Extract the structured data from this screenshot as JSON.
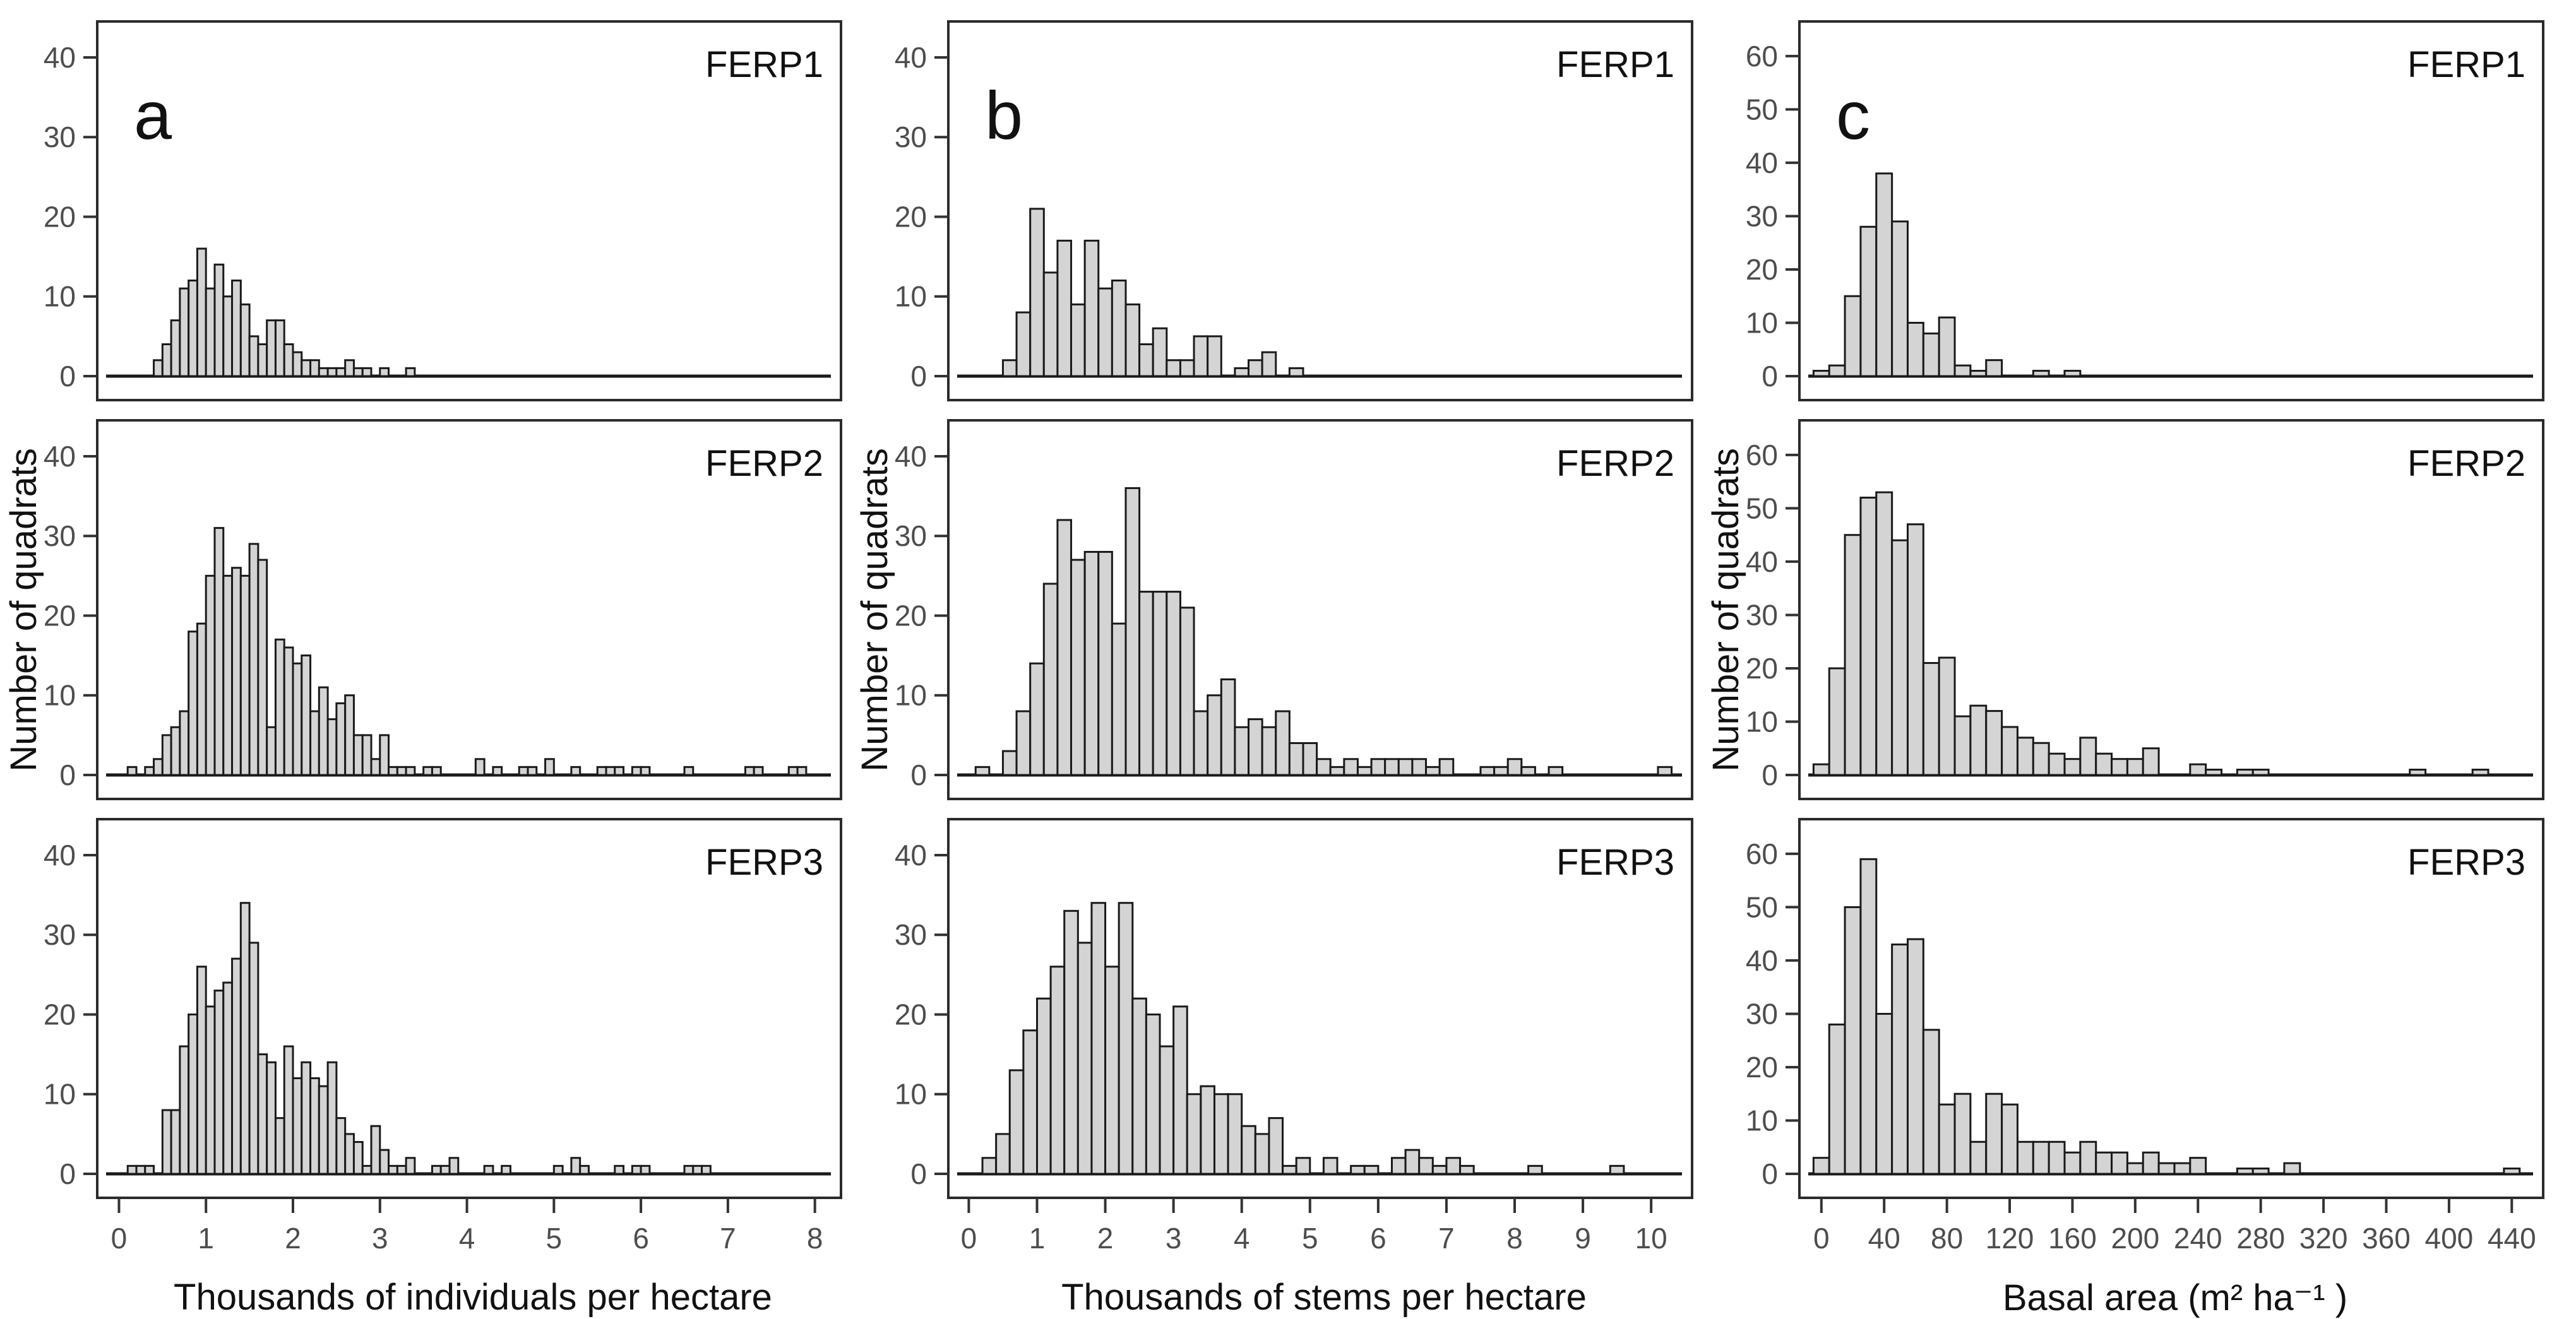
{
  "figure": {
    "background": "#ffffff",
    "bar_fill": "#d4d4d4",
    "bar_stroke": "#1a1a1a",
    "axis_color": "#2b2b2b",
    "tick_color": "#333333",
    "tick_label_color": "#4d4d4d",
    "text_color": "#111111",
    "ylabel": "Number of quadrats"
  },
  "chart_data": [
    {
      "type": "bar",
      "panel": "a-FERP1",
      "column": "a",
      "row": 0,
      "letter": "a",
      "site_label": "FERP1",
      "xlabel": "",
      "ylabel": "Number of quadrats",
      "grid": false,
      "legend": false,
      "xlim": [
        -0.25,
        8.3
      ],
      "xticks": [
        0,
        1,
        2,
        3,
        4,
        5,
        6,
        7,
        8
      ],
      "ylim": [
        0,
        41.5
      ],
      "yticks": [
        0,
        10,
        20,
        30,
        40
      ],
      "bin_start": 0.4,
      "bin_width": 0.1,
      "values": [
        2,
        4,
        7,
        11,
        12,
        16,
        11,
        14,
        10,
        12,
        9,
        5,
        4,
        7,
        7,
        4,
        3,
        2,
        2,
        1,
        1,
        1,
        2,
        1,
        1,
        0,
        1,
        0,
        0,
        1
      ]
    },
    {
      "type": "bar",
      "panel": "a-FERP2",
      "column": "a",
      "row": 1,
      "letter": "",
      "site_label": "FERP2",
      "xlabel": "",
      "ylabel": "Number of quadrats",
      "grid": false,
      "legend": false,
      "xlim": [
        -0.25,
        8.3
      ],
      "xticks": [
        0,
        1,
        2,
        3,
        4,
        5,
        6,
        7,
        8
      ],
      "ylim": [
        0,
        41.5
      ],
      "yticks": [
        0,
        10,
        20,
        30,
        40
      ],
      "bin_start": 0.1,
      "bin_width": 0.1,
      "values": [
        1,
        0,
        1,
        2,
        5,
        6,
        8,
        18,
        19,
        25,
        31,
        25,
        26,
        25,
        29,
        27,
        6,
        17,
        16,
        14,
        15,
        8,
        11,
        7,
        9,
        10,
        5,
        5,
        2,
        5,
        1,
        1,
        1,
        0,
        1,
        1,
        0,
        0,
        0,
        0,
        2,
        0,
        1,
        0,
        0,
        1,
        1,
        0,
        2,
        0,
        0,
        1,
        0,
        0,
        1,
        1,
        1,
        0,
        1,
        1,
        0,
        0,
        0,
        0,
        1,
        0,
        0,
        0,
        0,
        0,
        0,
        1,
        1,
        0,
        0,
        0,
        1,
        1
      ]
    },
    {
      "type": "bar",
      "panel": "a-FERP3",
      "column": "a",
      "row": 2,
      "letter": "",
      "site_label": "FERP3",
      "xlabel": "Thousands of individuals per hectare",
      "ylabel": "Number of quadrats",
      "grid": false,
      "legend": false,
      "xlim": [
        -0.25,
        8.3
      ],
      "xticks": [
        0,
        1,
        2,
        3,
        4,
        5,
        6,
        7,
        8
      ],
      "ylim": [
        0,
        41.5
      ],
      "yticks": [
        0,
        10,
        20,
        30,
        40
      ],
      "bin_start": 0.1,
      "bin_width": 0.1,
      "values": [
        1,
        1,
        1,
        0,
        8,
        8,
        16,
        20,
        26,
        21,
        23,
        24,
        27,
        34,
        29,
        15,
        14,
        7,
        16,
        12,
        14,
        12,
        11,
        14,
        7,
        5,
        4,
        1,
        6,
        3,
        1,
        1,
        2,
        0,
        0,
        1,
        1,
        2,
        0,
        0,
        0,
        1,
        0,
        1,
        0,
        0,
        0,
        0,
        0,
        1,
        0,
        2,
        1,
        0,
        0,
        0,
        1,
        0,
        1,
        1,
        0,
        0,
        0,
        0,
        1,
        1,
        1
      ]
    },
    {
      "type": "bar",
      "panel": "b-FERP1",
      "column": "b",
      "row": 0,
      "letter": "b",
      "site_label": "FERP1",
      "xlabel": "",
      "ylabel": "Number of quadrats",
      "grid": false,
      "legend": false,
      "xlim": [
        -0.3,
        10.6
      ],
      "xticks": [
        0,
        1,
        2,
        3,
        4,
        5,
        6,
        7,
        8,
        9,
        10
      ],
      "ylim": [
        0,
        41.5
      ],
      "yticks": [
        0,
        10,
        20,
        30,
        40
      ],
      "bin_start": 0.5,
      "bin_width": 0.2,
      "values": [
        2,
        8,
        21,
        13,
        17,
        9,
        17,
        11,
        12,
        9,
        4,
        6,
        2,
        2,
        5,
        5,
        0,
        1,
        2,
        3,
        0,
        1
      ]
    },
    {
      "type": "bar",
      "panel": "b-FERP2",
      "column": "b",
      "row": 1,
      "letter": "",
      "site_label": "FERP2",
      "xlabel": "",
      "ylabel": "Number of quadrats",
      "grid": false,
      "legend": false,
      "xlim": [
        -0.3,
        10.6
      ],
      "xticks": [
        0,
        1,
        2,
        3,
        4,
        5,
        6,
        7,
        8,
        9,
        10
      ],
      "ylim": [
        0,
        41.5
      ],
      "yticks": [
        0,
        10,
        20,
        30,
        40
      ],
      "bin_start": 0.1,
      "bin_width": 0.2,
      "values": [
        1,
        0,
        3,
        8,
        14,
        24,
        32,
        27,
        28,
        28,
        19,
        36,
        23,
        23,
        23,
        21,
        8,
        10,
        12,
        6,
        7,
        6,
        8,
        4,
        4,
        2,
        1,
        2,
        1,
        2,
        2,
        2,
        2,
        1,
        2,
        0,
        0,
        1,
        1,
        2,
        1,
        0,
        1,
        0,
        0,
        0,
        0,
        0,
        0,
        0,
        1
      ]
    },
    {
      "type": "bar",
      "panel": "b-FERP3",
      "column": "b",
      "row": 2,
      "letter": "",
      "site_label": "FERP3",
      "xlabel": "Thousands of stems per hectare",
      "ylabel": "Number of quadrats",
      "grid": false,
      "legend": false,
      "xlim": [
        -0.3,
        10.6
      ],
      "xticks": [
        0,
        1,
        2,
        3,
        4,
        5,
        6,
        7,
        8,
        9,
        10
      ],
      "ylim": [
        0,
        41.5
      ],
      "yticks": [
        0,
        10,
        20,
        30,
        40
      ],
      "bin_start": 0.2,
      "bin_width": 0.2,
      "values": [
        2,
        5,
        13,
        18,
        22,
        26,
        33,
        29,
        34,
        26,
        34,
        22,
        20,
        16,
        21,
        10,
        11,
        10,
        10,
        6,
        5,
        7,
        1,
        2,
        0,
        2,
        0,
        1,
        1,
        0,
        2,
        3,
        2,
        1,
        2,
        1,
        0,
        0,
        0,
        0,
        1,
        0,
        0,
        0,
        0,
        0,
        1
      ]
    },
    {
      "type": "bar",
      "panel": "c-FERP1",
      "column": "c",
      "row": 0,
      "letter": "c",
      "site_label": "FERP1",
      "xlabel": "",
      "ylabel": "Number of quadrats",
      "grid": false,
      "legend": false,
      "xlim": [
        -14,
        460
      ],
      "xticks": [
        0,
        40,
        80,
        120,
        160,
        200,
        240,
        280,
        320,
        360,
        400,
        440
      ],
      "ylim": [
        0,
        62
      ],
      "yticks": [
        0,
        10,
        20,
        30,
        40,
        50,
        60
      ],
      "bin_start": -5,
      "bin_width": 10,
      "values": [
        1,
        2,
        15,
        28,
        38,
        29,
        10,
        8,
        11,
        2,
        1,
        3,
        0,
        0,
        1,
        0,
        1
      ]
    },
    {
      "type": "bar",
      "panel": "c-FERP2",
      "column": "c",
      "row": 1,
      "letter": "",
      "site_label": "FERP2",
      "xlabel": "",
      "ylabel": "Number of quadrats",
      "grid": false,
      "legend": false,
      "xlim": [
        -14,
        460
      ],
      "xticks": [
        0,
        40,
        80,
        120,
        160,
        200,
        240,
        280,
        320,
        360,
        400,
        440
      ],
      "ylim": [
        0,
        62
      ],
      "yticks": [
        0,
        10,
        20,
        30,
        40,
        50,
        60
      ],
      "bin_start": -5,
      "bin_width": 10,
      "values": [
        2,
        20,
        45,
        52,
        53,
        44,
        47,
        21,
        22,
        11,
        13,
        12,
        9,
        7,
        6,
        4,
        3,
        7,
        4,
        3,
        3,
        5,
        0,
        0,
        2,
        1,
        0,
        1,
        1,
        0,
        0,
        0,
        0,
        0,
        0,
        0,
        0,
        0,
        1,
        0,
        0,
        0,
        1
      ]
    },
    {
      "type": "bar",
      "panel": "c-FERP3",
      "column": "c",
      "row": 2,
      "letter": "",
      "site_label": "FERP3",
      "xlabel": "Basal area (m² ha⁻¹ )",
      "ylabel": "Number of quadrats",
      "grid": false,
      "legend": false,
      "xlim": [
        -14,
        460
      ],
      "xticks": [
        0,
        40,
        80,
        120,
        160,
        200,
        240,
        280,
        320,
        360,
        400,
        440
      ],
      "ylim": [
        0,
        62
      ],
      "yticks": [
        0,
        10,
        20,
        30,
        40,
        50,
        60
      ],
      "bin_start": -5,
      "bin_width": 10,
      "values": [
        3,
        28,
        50,
        59,
        30,
        43,
        44,
        27,
        13,
        15,
        6,
        15,
        13,
        6,
        6,
        6,
        4,
        6,
        4,
        4,
        2,
        4,
        2,
        2,
        3,
        0,
        0,
        1,
        1,
        0,
        2,
        0,
        0,
        0,
        0,
        0,
        0,
        0,
        0,
        0,
        0,
        0,
        0,
        0,
        1
      ]
    }
  ]
}
